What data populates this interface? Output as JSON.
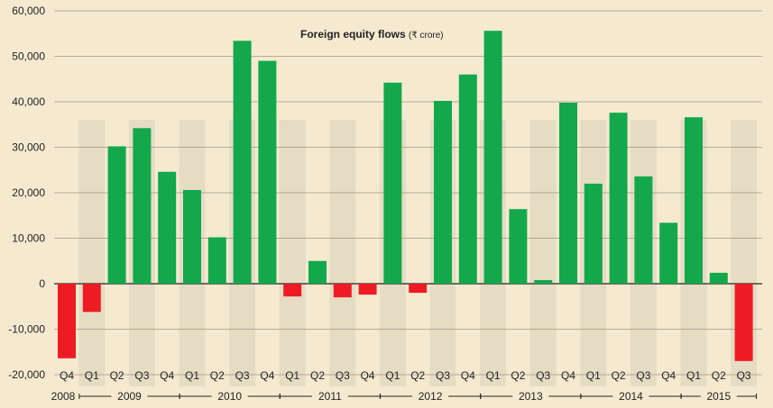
{
  "chart_data": {
    "type": "bar",
    "title": "Foreign equity flows",
    "unit": "(₹ crore)",
    "ylim": [
      -20000,
      60000
    ],
    "yticks": [
      -20000,
      -10000,
      0,
      10000,
      20000,
      30000,
      40000,
      50000,
      60000
    ],
    "ytick_labels": [
      "-20,000",
      "-10,000",
      "0",
      "10,000",
      "20,000",
      "30,000",
      "40,000",
      "50,000",
      "60,000"
    ],
    "grid": true,
    "categories": [
      "Q4",
      "Q1",
      "Q2",
      "Q3",
      "Q4",
      "Q1",
      "Q2",
      "Q3",
      "Q4",
      "Q1",
      "Q2",
      "Q3",
      "Q4",
      "Q1",
      "Q2",
      "Q3",
      "Q4",
      "Q1",
      "Q2",
      "Q3",
      "Q4",
      "Q1",
      "Q2",
      "Q3",
      "Q4",
      "Q1",
      "Q2",
      "Q3"
    ],
    "years": [
      {
        "label": "2008",
        "quarters": 1
      },
      {
        "label": "2009",
        "quarters": 4
      },
      {
        "label": "2010",
        "quarters": 4
      },
      {
        "label": "2011",
        "quarters": 4
      },
      {
        "label": "2012",
        "quarters": 4
      },
      {
        "label": "2013",
        "quarters": 4
      },
      {
        "label": "2014",
        "quarters": 4
      },
      {
        "label": "2015",
        "quarters": 3
      }
    ],
    "values": [
      -16400,
      -6200,
      30200,
      34200,
      24600,
      20600,
      10200,
      53400,
      49000,
      -2800,
      5000,
      -3000,
      -2400,
      44200,
      -2000,
      40200,
      46000,
      55600,
      16400,
      800,
      39800,
      22000,
      37600,
      23600,
      13400,
      36600,
      2400,
      -17000
    ],
    "colors": {
      "positive": "#12a84b",
      "negative": "#ed1c24",
      "band": "#e6dcc4",
      "grid": "#9a9488"
    }
  }
}
